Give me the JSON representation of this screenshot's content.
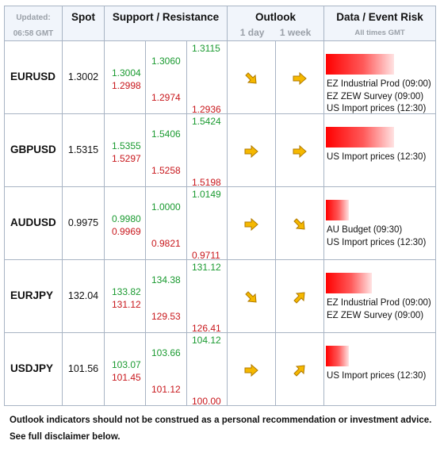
{
  "header": {
    "updated_label": "Updated:",
    "updated_time": "06:58 GMT",
    "spot": "Spot",
    "support_resistance": "Support / Resistance",
    "outlook": "Outlook",
    "outlook_1day": "1 day",
    "outlook_1week": "1 week",
    "data_event_risk": "Data / Event Risk",
    "all_times": "All times GMT"
  },
  "rows": [
    {
      "pair": "EURUSD",
      "spot": "1.3002",
      "s1_res": "1.3004",
      "s1_sup": "1.2998",
      "s2_res": "1.3060",
      "s2_sup": "1.2974",
      "s3_res": "1.3115",
      "s3_sup": "1.2936",
      "day": "down-right-arrow",
      "week": "right-arrow",
      "risk_level": 0.6,
      "events": [
        "EZ Industrial Prod (09:00)",
        "EZ ZEW Survey (09:00)",
        "US Import prices (12:30)"
      ]
    },
    {
      "pair": "GBPUSD",
      "spot": "1.5315",
      "s1_res": "1.5355",
      "s1_sup": "1.5297",
      "s2_res": "1.5406",
      "s2_sup": "1.5258",
      "s3_res": "1.5424",
      "s3_sup": "1.5198",
      "day": "right-arrow",
      "week": "right-arrow",
      "risk_level": 0.6,
      "events": [
        "US Import prices (12:30)"
      ]
    },
    {
      "pair": "AUDUSD",
      "spot": "0.9975",
      "s1_res": "0.9980",
      "s1_sup": "0.9969",
      "s2_res": "1.0000",
      "s2_sup": "0.9821",
      "s3_res": "1.0149",
      "s3_sup": "0.9711",
      "day": "right-arrow",
      "week": "down-right-arrow",
      "risk_level": 0.2,
      "events": [
        "AU Budget  (09:30)",
        "US Import prices (12:30)"
      ]
    },
    {
      "pair": "EURJPY",
      "spot": "132.04",
      "s1_res": "133.82",
      "s1_sup": "131.12",
      "s2_res": "134.38",
      "s2_sup": "129.53",
      "s3_res": "131.12",
      "s3_sup": "126.41",
      "day": "down-right-arrow",
      "week": "up-right-arrow",
      "risk_level": 0.4,
      "events": [
        "EZ Industrial Prod (09:00)",
        "EZ ZEW Survey (09:00)"
      ]
    },
    {
      "pair": "USDJPY",
      "spot": "101.56",
      "s1_res": "103.07",
      "s1_sup": "101.45",
      "s2_res": "103.66",
      "s2_sup": "101.12",
      "s3_res": "104.12",
      "s3_sup": "100.00",
      "day": "right-arrow",
      "week": "up-right-arrow",
      "risk_level": 0.2,
      "events": [
        "US Import prices (12:30)"
      ]
    }
  ],
  "colors": {
    "support_green": "#1a9a30",
    "resistance_red": "#c8171c",
    "arrow_fill": "#f5b800"
  },
  "footer": {
    "line1": "Outlook indicators should not be construed as a personal recommendation or investment advice.",
    "line2": "See full disclaimer below."
  }
}
